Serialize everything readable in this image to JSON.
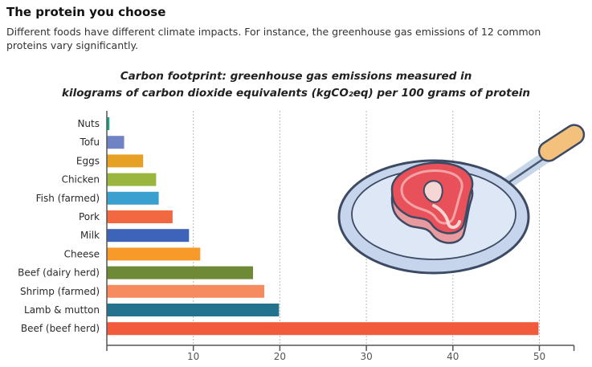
{
  "header": {
    "title": "The protein you choose",
    "description": "Different foods have different climate impacts. For instance, the greenhouse gas emissions of 12 common proteins vary significantly."
  },
  "chart_data": {
    "type": "bar",
    "orientation": "horizontal",
    "title_line1": "Carbon footprint: greenhouse gas emissions measured in",
    "title_line2": "kilograms of carbon dioxide equivalents (kgCO₂eq) per 100 grams of protein",
    "categories": [
      "Nuts",
      "Tofu",
      "Eggs",
      "Chicken",
      "Fish (farmed)",
      "Pork",
      "Milk",
      "Cheese",
      "Beef (dairy herd)",
      "Shrimp (farmed)",
      "Lamb & mutton",
      "Beef (beef herd)"
    ],
    "values": [
      0.3,
      2.0,
      4.2,
      5.7,
      6.0,
      7.6,
      9.5,
      10.8,
      16.9,
      18.2,
      19.9,
      49.9
    ],
    "colors": [
      "#19a58a",
      "#6f83c4",
      "#e6a125",
      "#9bb63f",
      "#3aa0cf",
      "#f26841",
      "#3d64b8",
      "#f79a2a",
      "#6f8a37",
      "#f58b5e",
      "#23738f",
      "#f25a3c"
    ],
    "xticks": [
      10,
      20,
      30,
      40,
      50
    ],
    "xlim": [
      0,
      54
    ],
    "grid": true
  }
}
